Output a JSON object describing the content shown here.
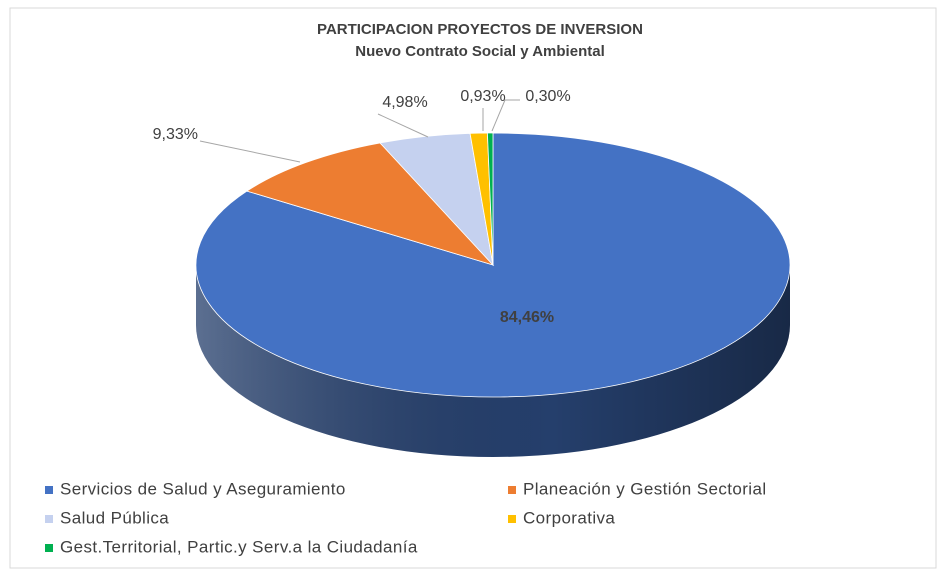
{
  "chart_data": {
    "type": "pie",
    "title": "PARTICIPACION PROYECTOS DE INVERSION",
    "subtitle": "Nuevo Contrato Social y Ambiental",
    "categories": [
      "Servicios de Salud y Aseguramiento",
      "Planeación y Gestión Sectorial",
      "Salud Pública",
      "Corporativa",
      "Gest.Territorial, Partic.y Serv.a la Ciudadanía"
    ],
    "values": [
      84.46,
      9.33,
      4.98,
      0.93,
      0.3
    ],
    "value_labels": [
      "84,46%",
      "9,33%",
      "4,98%",
      "0,93%",
      "0,30%"
    ],
    "colors": [
      "#4472c4",
      "#ed7d31",
      "#c5d1ef",
      "#ffc000",
      "#00b050"
    ]
  }
}
